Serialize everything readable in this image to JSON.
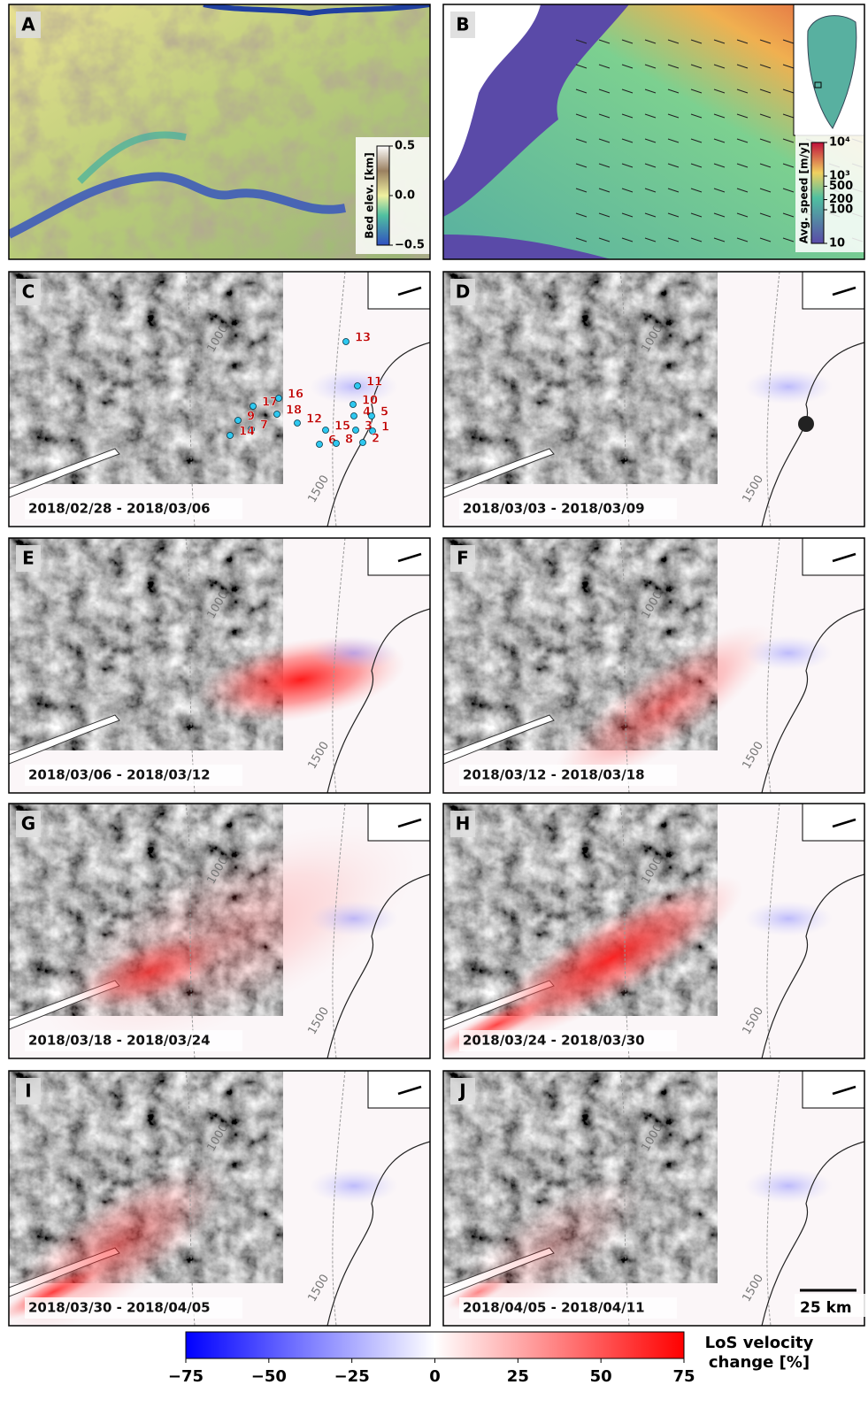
{
  "panels": [
    {
      "letter": "A",
      "colorbar": {
        "label": "Bed elev. [km]",
        "lim": [
          -0.5,
          0.5
        ],
        "ticks": [
          0.5,
          {
            "value": 0,
            "label": "0.0"
          },
          {
            "value": -0.5,
            "label": "−0.5"
          }
        ]
      }
    },
    {
      "letter": "B",
      "colorbar": {
        "label": "Avg. speed [m/y]",
        "log": true,
        "lim": [
          10,
          10000
        ],
        "ticks": [
          {
            "value": 10000,
            "label": "10⁴"
          },
          {
            "value": 1000,
            "label": "10³"
          },
          500,
          200,
          100,
          10
        ]
      }
    },
    {
      "letter": "C",
      "dates": "2018/02/28 - 2018/03/06",
      "lakes": [
        13,
        11,
        10,
        4,
        5,
        3,
        1,
        2,
        15,
        6,
        8,
        17,
        16,
        18,
        12,
        9,
        7,
        14
      ]
    },
    {
      "letter": "D",
      "dates": "2018/03/03 - 2018/03/09"
    },
    {
      "letter": "E",
      "dates": "2018/03/06 - 2018/03/12"
    },
    {
      "letter": "F",
      "dates": "2018/03/12 - 2018/03/18"
    },
    {
      "letter": "G",
      "dates": "2018/03/18 - 2018/03/24"
    },
    {
      "letter": "H",
      "dates": "2018/03/24 - 2018/03/30"
    },
    {
      "letter": "I",
      "dates": "2018/03/30 - 2018/04/05"
    },
    {
      "letter": "J",
      "dates": "2018/04/05 - 2018/04/11"
    }
  ],
  "contour_labels": [
    1000,
    1500
  ],
  "scale_bar": "25 km",
  "colorbar": {
    "label": [
      "LoS velocity",
      "change [%]"
    ],
    "lim": [
      -75,
      75
    ],
    "ticks": [
      {
        "value": -75,
        "label": "−75"
      },
      {
        "value": -50,
        "label": "−50"
      },
      {
        "value": -25,
        "label": "−25"
      },
      0,
      25,
      50,
      75
    ]
  }
}
